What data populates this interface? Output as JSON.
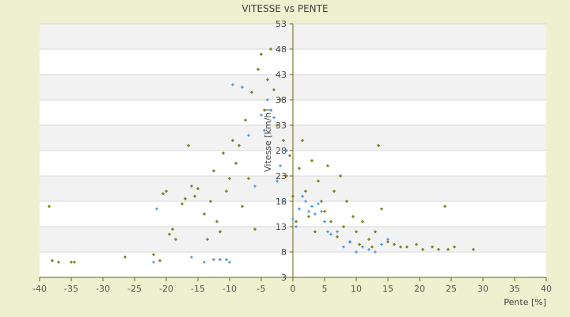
{
  "chart_data": {
    "type": "scatter",
    "title": "VITESSE vs PENTE",
    "xlabel": "Pente [%]",
    "ylabel": "Vitesse [km/h]",
    "xlim": [
      -40,
      40
    ],
    "ylim": [
      3,
      53
    ],
    "x_ticks": [
      "-40",
      "-35",
      "-30",
      "-25",
      "-20",
      "-15",
      "-10",
      "-5",
      "0",
      "5",
      "10",
      "15",
      "20",
      "25",
      "30",
      "35",
      "40"
    ],
    "y_ticks": [
      "3",
      "8",
      "13",
      "18",
      "23",
      "28",
      "33",
      "38",
      "43",
      "48",
      "53"
    ],
    "grid": true,
    "legend": "none",
    "colors": {
      "background": "#eef0cf",
      "plot_band_light": "#ffffff",
      "plot_band_dark": "#f2f2f2",
      "series_olive": "#8a8a10",
      "series_blue": "#3c8ee6",
      "axis": "#66660a"
    },
    "series": [
      {
        "color": "#8a8a10",
        "marker": "diamond",
        "points": [
          [
            -38.5,
            17.0
          ],
          [
            -38.0,
            6.3
          ],
          [
            -37.0,
            6.0
          ],
          [
            -35.0,
            6.0
          ],
          [
            -34.5,
            6.0
          ],
          [
            -26.5,
            7.0
          ],
          [
            -22.0,
            7.5
          ],
          [
            -21.0,
            6.3
          ],
          [
            -20.5,
            19.5
          ],
          [
            -20.0,
            20.0
          ],
          [
            -19.5,
            11.5
          ],
          [
            -19.0,
            12.5
          ],
          [
            -18.5,
            10.5
          ],
          [
            -17.5,
            17.5
          ],
          [
            -17.0,
            18.5
          ],
          [
            -16.5,
            29.0
          ],
          [
            -16.0,
            21.0
          ],
          [
            -15.5,
            19.0
          ],
          [
            -15.0,
            20.5
          ],
          [
            -14.0,
            15.5
          ],
          [
            -13.5,
            10.5
          ],
          [
            -13.0,
            18.0
          ],
          [
            -12.5,
            24.0
          ],
          [
            -12.0,
            14.0
          ],
          [
            -11.5,
            12.0
          ],
          [
            -11.0,
            27.5
          ],
          [
            -10.5,
            20.0
          ],
          [
            -10.0,
            22.5
          ],
          [
            -9.5,
            30.0
          ],
          [
            -9.0,
            25.5
          ],
          [
            -8.5,
            29.0
          ],
          [
            -8.0,
            17.0
          ],
          [
            -7.5,
            34.0
          ],
          [
            -7.0,
            22.5
          ],
          [
            -6.5,
            39.5
          ],
          [
            -6.0,
            12.5
          ],
          [
            -5.5,
            44.0
          ],
          [
            -5.0,
            47.0
          ],
          [
            -4.5,
            36.0
          ],
          [
            -4.0,
            42.0
          ],
          [
            -3.5,
            48.0
          ],
          [
            -3.0,
            40.0
          ],
          [
            -2.5,
            33.0
          ],
          [
            -2.0,
            38.0
          ],
          [
            -1.5,
            30.0
          ],
          [
            -1.0,
            23.0
          ],
          [
            -0.5,
            27.0
          ],
          [
            0.0,
            19.0
          ],
          [
            0.5,
            14.0
          ],
          [
            1.0,
            24.5
          ],
          [
            1.5,
            30.0
          ],
          [
            2.0,
            20.0
          ],
          [
            2.5,
            15.0
          ],
          [
            3.0,
            26.0
          ],
          [
            3.5,
            12.0
          ],
          [
            4.0,
            22.0
          ],
          [
            4.5,
            18.0
          ],
          [
            5.0,
            16.0
          ],
          [
            5.5,
            25.0
          ],
          [
            6.0,
            14.0
          ],
          [
            6.5,
            20.0
          ],
          [
            7.0,
            11.0
          ],
          [
            7.5,
            23.0
          ],
          [
            8.0,
            13.0
          ],
          [
            8.5,
            18.0
          ],
          [
            9.0,
            10.0
          ],
          [
            9.5,
            15.0
          ],
          [
            10.0,
            12.0
          ],
          [
            10.5,
            9.5
          ],
          [
            11.0,
            14.0
          ],
          [
            12.0,
            10.5
          ],
          [
            12.5,
            9.0
          ],
          [
            13.0,
            12.0
          ],
          [
            13.5,
            29.0
          ],
          [
            14.0,
            16.5
          ],
          [
            15.0,
            10.0
          ],
          [
            16.0,
            9.5
          ],
          [
            17.0,
            9.0
          ],
          [
            18.0,
            9.0
          ],
          [
            19.5,
            9.5
          ],
          [
            20.5,
            8.5
          ],
          [
            22.0,
            9.0
          ],
          [
            23.0,
            8.5
          ],
          [
            24.0,
            17.0
          ],
          [
            24.5,
            8.5
          ],
          [
            25.5,
            9.0
          ],
          [
            28.5,
            8.5
          ]
        ]
      },
      {
        "color": "#3c8ee6",
        "marker": "plus",
        "points": [
          [
            -22.0,
            6.0
          ],
          [
            -21.5,
            16.5
          ],
          [
            -16.0,
            7.0
          ],
          [
            -14.0,
            6.0
          ],
          [
            -12.5,
            6.5
          ],
          [
            -11.5,
            6.5
          ],
          [
            -10.5,
            6.5
          ],
          [
            -10.0,
            6.0
          ],
          [
            -9.5,
            41.0
          ],
          [
            -8.0,
            40.5
          ],
          [
            -7.0,
            31.0
          ],
          [
            -6.0,
            21.0
          ],
          [
            -5.0,
            35.0
          ],
          [
            -4.5,
            32.0
          ],
          [
            -4.0,
            38.0
          ],
          [
            -3.5,
            36.0
          ],
          [
            -3.0,
            34.5
          ],
          [
            -2.5,
            22.0
          ],
          [
            -2.0,
            25.0
          ],
          [
            -1.5,
            18.0
          ],
          [
            -1.0,
            28.0
          ],
          [
            0.0,
            14.5
          ],
          [
            0.5,
            13.0
          ],
          [
            1.0,
            16.5
          ],
          [
            1.5,
            19.0
          ],
          [
            2.0,
            18.0
          ],
          [
            2.5,
            16.0
          ],
          [
            3.0,
            17.0
          ],
          [
            3.5,
            15.5
          ],
          [
            4.0,
            17.5
          ],
          [
            4.5,
            16.0
          ],
          [
            5.0,
            14.0
          ],
          [
            5.5,
            12.0
          ],
          [
            6.0,
            11.5
          ],
          [
            7.0,
            12.0
          ],
          [
            8.0,
            9.0
          ],
          [
            9.0,
            10.0
          ],
          [
            10.0,
            8.0
          ],
          [
            11.0,
            9.0
          ],
          [
            12.0,
            8.5
          ],
          [
            13.0,
            8.0
          ],
          [
            14.0,
            9.5
          ],
          [
            15.0,
            10.5
          ]
        ]
      }
    ]
  }
}
